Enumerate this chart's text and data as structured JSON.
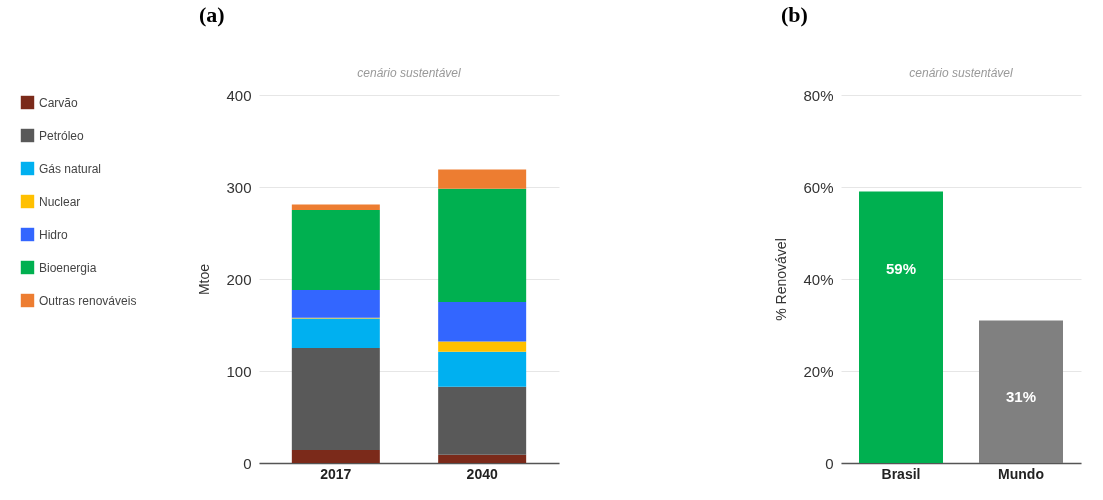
{
  "chart_data": [
    {
      "type": "bar",
      "title": "(a)",
      "subtitle": "cenário sustentável",
      "ylabel": "Mtoe",
      "categories": [
        "2017",
        "2040"
      ],
      "stacked": true,
      "legend": "left",
      "grid": "y",
      "ylim": [
        0,
        400
      ],
      "yticks": [
        0,
        100,
        200,
        300,
        400
      ],
      "series": [
        {
          "name": "Carvão",
          "color": "#7b2a1a",
          "values": [
            14,
            9
          ]
        },
        {
          "name": "Petróleo",
          "color": "#595959",
          "values": [
            111,
            74
          ]
        },
        {
          "name": "Gás natural",
          "color": "#00b0f0",
          "values": [
            32,
            38
          ]
        },
        {
          "name": "Nuclear",
          "color": "#ffc000",
          "values": [
            1,
            11
          ]
        },
        {
          "name": "Hidro",
          "color": "#3366ff",
          "values": [
            30,
            43
          ]
        },
        {
          "name": "Bioenergia",
          "color": "#00b050",
          "values": [
            87,
            123
          ]
        },
        {
          "name": "Outras renováveis",
          "color": "#ed7d31",
          "values": [
            6,
            21
          ]
        }
      ]
    },
    {
      "type": "bar",
      "title": "(b)",
      "subtitle": "cenário sustentável",
      "ylabel": "% Renovável",
      "categories": [
        "Brasil",
        "Mundo"
      ],
      "values": [
        59,
        31
      ],
      "colors": [
        "#00b050",
        "#808080"
      ],
      "value_labels": [
        "59%",
        "31%"
      ],
      "grid": "y",
      "ylim": [
        0,
        80
      ],
      "yticks": [
        0,
        {
          "value": 20,
          "label": "20%"
        },
        {
          "value": 40,
          "label": "40%"
        },
        {
          "value": 60,
          "label": "60%"
        },
        {
          "value": 80,
          "label": "80%"
        }
      ]
    }
  ]
}
